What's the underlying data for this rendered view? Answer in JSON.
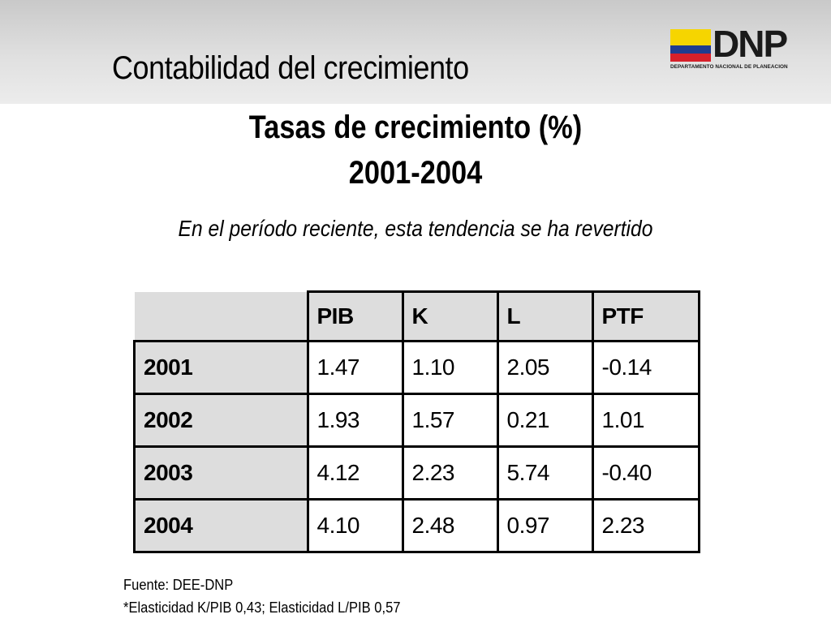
{
  "header": {
    "title": "Contabilidad del crecimiento",
    "logo_text": "DNP",
    "logo_subtitle": "DEPARTAMENTO NACIONAL DE PLANEACION",
    "logo_colors": [
      "#f6d500",
      "#1f3c8f",
      "#d6202a"
    ]
  },
  "table_title": {
    "line1": "Tasas de crecimiento (%)",
    "line2": "2001-2004"
  },
  "subtitle": "En el período reciente, esta tendencia se ha revertido",
  "table": {
    "columns": [
      "PIB",
      "K",
      "L",
      "PTF"
    ],
    "rows": [
      {
        "year": "2001",
        "values": [
          "1.47",
          "1.10",
          "2.05",
          "-0.14"
        ]
      },
      {
        "year": "2002",
        "values": [
          "1.93",
          "1.57",
          "0.21",
          "1.01"
        ]
      },
      {
        "year": "2003",
        "values": [
          "4.12",
          "2.23",
          "5.74",
          "-0.40"
        ]
      },
      {
        "year": "2004",
        "values": [
          "4.10",
          "2.48",
          "0.97",
          "2.23"
        ]
      }
    ]
  },
  "notes": {
    "source": "Fuente: DEE-DNP",
    "elasticity": "*Elasticidad K/PIB 0,43; Elasticidad L/PIB 0,57"
  }
}
